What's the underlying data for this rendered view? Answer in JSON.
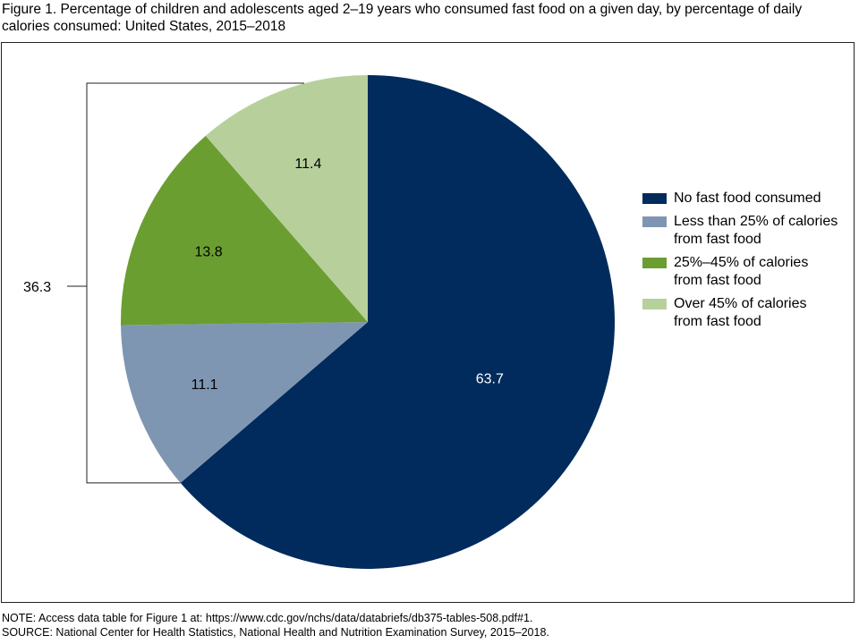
{
  "title": "Figure 1. Percentage of children and adolescents aged 2–19 years who consumed fast food on a given day, by percentage of daily calories consumed: United States, 2015–2018",
  "chart_data": {
    "type": "pie",
    "start": "top",
    "direction": "clockwise",
    "slices": [
      {
        "label": "No fast food consumed",
        "value": 63.7,
        "display": "63.7",
        "color": "#002b5c",
        "label_color": "#ffffff"
      },
      {
        "label": "Less than 25%  of calories from fast food",
        "value": 11.1,
        "display": "11.1",
        "color": "#7f96b2",
        "label_color": "#000000"
      },
      {
        "label": "25%–45% of calories from fast food",
        "value": 13.8,
        "display": "13.8",
        "color": "#6b9e31",
        "label_color": "#000000"
      },
      {
        "label": "Over 45% of calories from fast food",
        "value": 11.4,
        "display": "11.4",
        "color": "#b7d09b",
        "label_color": "#000000"
      }
    ],
    "annotation": {
      "text": "36.3",
      "spans": "sum of fast food consumed slices"
    },
    "legend_position": "right"
  },
  "notes": {
    "note": "NOTE: Access data table for Figure 1 at: https://www.cdc.gov/nchs/data/databriefs/db375-tables-508.pdf#1.",
    "source": "SOURCE: National Center for Health Statistics, National Health and Nutrition Examination Survey, 2015–2018."
  }
}
